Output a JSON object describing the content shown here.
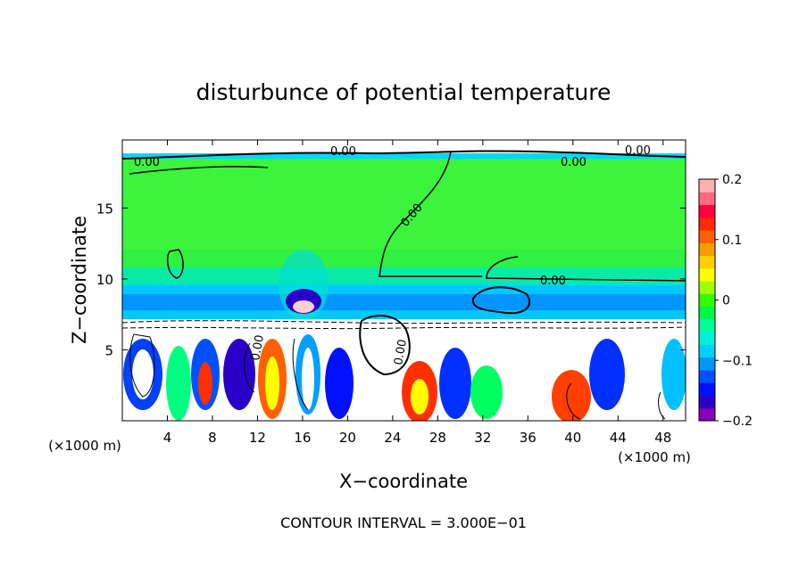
{
  "chart_data": {
    "type": "heatmap",
    "title": "disturbunce of potential temperature",
    "xlabel": "X−coordinate",
    "ylabel": "Z−coordinate",
    "x_unit": "(×1000 m)",
    "y_unit": "(×1000 m)",
    "xlim": [
      0,
      50
    ],
    "ylim": [
      0,
      19.8
    ],
    "x_ticks": [
      4,
      8,
      12,
      16,
      20,
      24,
      28,
      32,
      36,
      40,
      44,
      48
    ],
    "y_ticks": [
      5,
      10,
      15
    ],
    "colorbar": {
      "range": [
        -0.2,
        0.2
      ],
      "tick_labels": [
        "0.2",
        "0.1",
        "0",
        "−0.1",
        "−0.2"
      ],
      "tick_values": [
        0.2,
        0.1,
        0,
        -0.1,
        -0.2
      ],
      "colors": [
        "#8a00b8",
        "#2a00c8",
        "#0010ff",
        "#0050ff",
        "#0095ff",
        "#00d0ff",
        "#00f0d8",
        "#00ff9a",
        "#00f54a",
        "#30ff00",
        "#a0ff00",
        "#ffff00",
        "#ffd000",
        "#ff9a00",
        "#ff6000",
        "#ff2a00",
        "#ff0040",
        "#ff6a80",
        "#ffb0b0"
      ]
    },
    "contour_interval_text": "CONTOUR INTERVAL = 3.000E−01",
    "contour_labels": [
      {
        "text": "0.00",
        "x": 2.6,
        "z": 18.4
      },
      {
        "text": "0.00",
        "x": 18.6,
        "z": 19.1
      },
      {
        "text": "0.00",
        "x": 25.2,
        "z": 14.8
      },
      {
        "text": "0.00",
        "x": 40.1,
        "z": 18.4
      },
      {
        "text": "0.00",
        "x": 38.9,
        "z": 10.0
      },
      {
        "text": "0.00",
        "x": 11.3,
        "z": 4.4
      },
      {
        "text": "0.00",
        "x": 22.8,
        "z": 4.3
      },
      {
        "text": "0.00",
        "x": 45.4,
        "z": 19.0
      }
    ],
    "regions": {
      "upper_layer_value": 0.01,
      "tropopause_band_value": -0.08,
      "lower_turbulent_layer": "mixed positive and negative disturbances"
    }
  }
}
